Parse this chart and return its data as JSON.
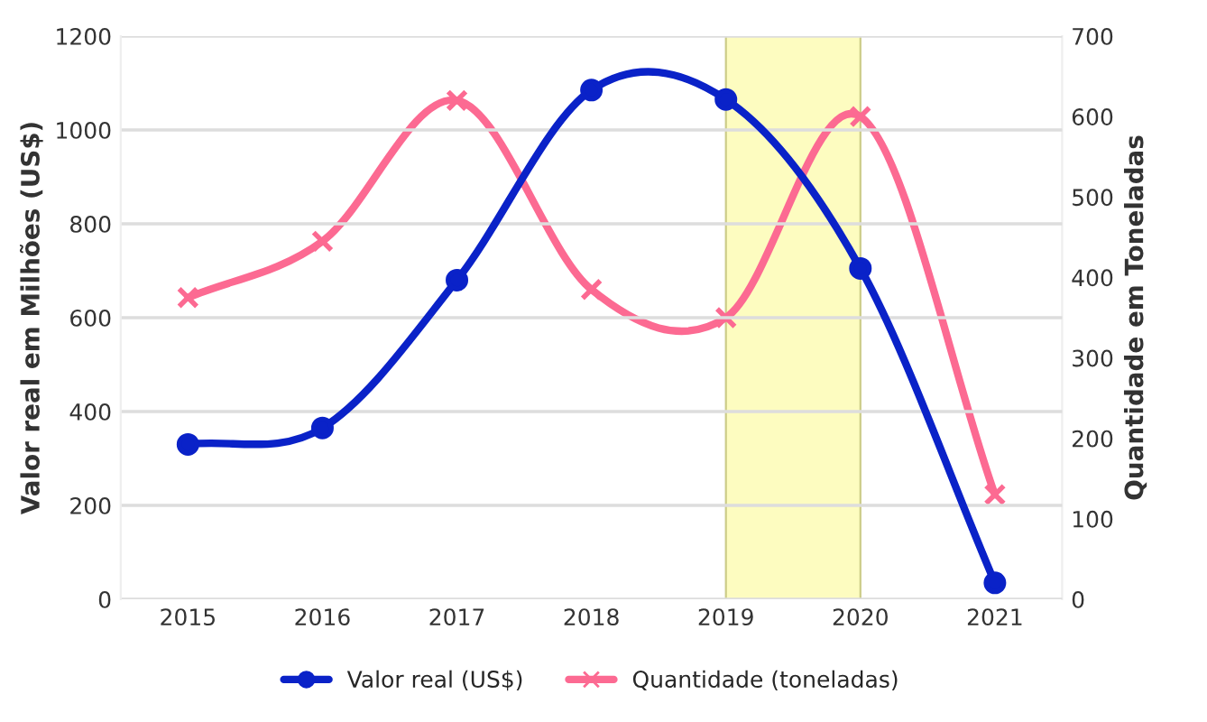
{
  "chart_data": {
    "type": "line",
    "categories": [
      "2015",
      "2016",
      "2017",
      "2018",
      "2019",
      "2020",
      "2021"
    ],
    "ylabel": "Valor real em Milhões (US$)",
    "y2label": "Quantidade em Toneladas",
    "series": [
      {
        "name": "Valor real (US$)",
        "color": "#0a22c8",
        "marker": "circle",
        "values": [
          330,
          365,
          680,
          1085,
          1065,
          705,
          35
        ]
      },
      {
        "name": "Quantidade (toneladas)",
        "color": "#fc6a92",
        "marker": "cross",
        "axis": "y2",
        "values": [
          375,
          445,
          620,
          385,
          350,
          600,
          130
        ]
      }
    ],
    "ylim": [
      0,
      1200
    ],
    "yticks": [
      0,
      200,
      400,
      600,
      800,
      1000,
      1200
    ],
    "y2lim": [
      0,
      700
    ],
    "y2ticks": [
      0,
      100,
      200,
      300,
      400,
      500,
      600,
      700
    ],
    "bands": [
      {
        "axis": "x",
        "from": "2019",
        "to": "2020",
        "color": "#fdfcc0"
      }
    ],
    "grid": "y",
    "legend": "bottom"
  }
}
